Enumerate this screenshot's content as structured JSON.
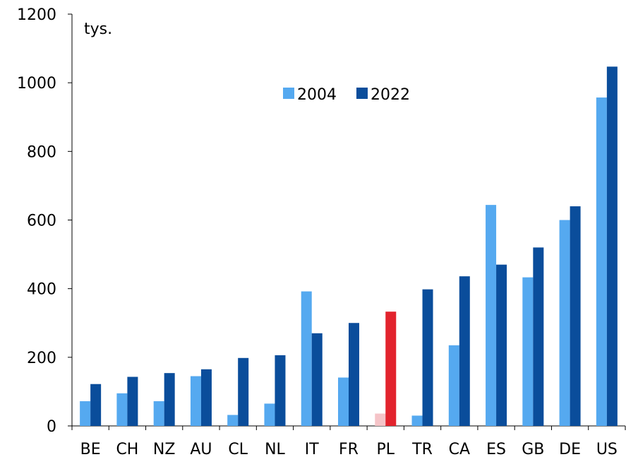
{
  "chart_data": {
    "type": "bar",
    "unit_label": "tys.",
    "categories": [
      "BE",
      "CH",
      "NZ",
      "AU",
      "CL",
      "NL",
      "IT",
      "FR",
      "PL",
      "TR",
      "CA",
      "ES",
      "GB",
      "DE",
      "US"
    ],
    "series": [
      {
        "name": "2004",
        "color": "#55a9f0",
        "values": [
          72,
          95,
          72,
          145,
          32,
          65,
          392,
          141,
          36,
          30,
          235,
          644,
          433,
          600,
          957
        ]
      },
      {
        "name": "2022",
        "color": "#0a4d9b",
        "values": [
          122,
          143,
          154,
          165,
          198,
          206,
          270,
          300,
          333,
          398,
          436,
          470,
          520,
          640,
          1047
        ]
      }
    ],
    "highlight": {
      "category": "PL",
      "colors": {
        "2004": "#f5c4c8",
        "2022": "#e2232d"
      }
    },
    "yticks": [
      0,
      200,
      400,
      600,
      800,
      1000,
      1200
    ],
    "ylim": [
      0,
      1200
    ],
    "grid": false,
    "legend_position": "top-center"
  }
}
